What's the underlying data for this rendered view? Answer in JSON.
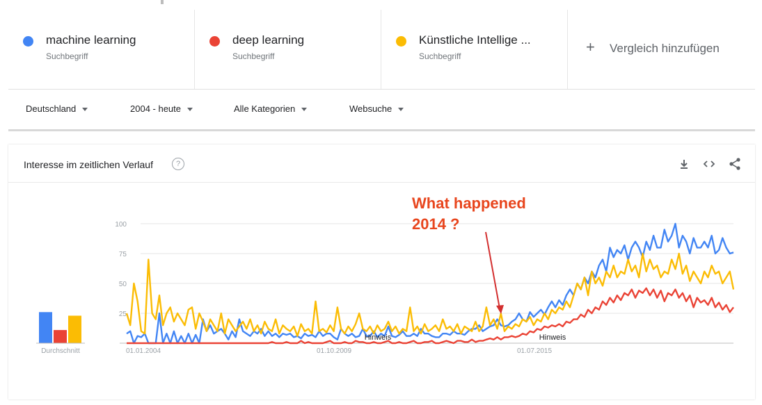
{
  "terms": [
    {
      "name": "machine learning",
      "sub": "Suchbegriff",
      "color": "#4285f4"
    },
    {
      "name": "deep learning",
      "sub": "Suchbegriff",
      "color": "#ea4335"
    },
    {
      "name": "Künstliche Intellige ...",
      "sub": "Suchbegriff",
      "color": "#fbbc04"
    }
  ],
  "add_compare": {
    "plus": "+",
    "label": "Vergleich hinzufügen"
  },
  "filters": {
    "region": "Deutschland",
    "time": "2004 - heute",
    "category": "Alle Kategorien",
    "search_type": "Websuche"
  },
  "card": {
    "title": "Interesse im zeitlichen Verlauf",
    "help": "?",
    "tools": [
      "download-icon",
      "embed-icon",
      "share-icon"
    ]
  },
  "annotation": "What happened\n2014 ?",
  "chart_data": {
    "type": "line",
    "ylim": [
      0,
      100
    ],
    "yticks": [
      "25",
      "50",
      "75",
      "100"
    ],
    "xticks": [
      "01.01.2004",
      "01.10.2009",
      "01.07.2015"
    ],
    "notes": [
      "Hinweis",
      "Hinweis"
    ],
    "average_label": "Durchschnitt",
    "averages": [
      26,
      11,
      23
    ],
    "series": [
      {
        "name": "machine learning",
        "color": "#4285f4",
        "values": [
          8,
          10,
          0,
          6,
          5,
          8,
          0,
          0,
          0,
          25,
          0,
          8,
          0,
          10,
          0,
          6,
          0,
          8,
          0,
          7,
          0,
          20,
          10,
          15,
          8,
          10,
          12,
          8,
          3,
          10,
          5,
          20,
          10,
          8,
          6,
          10,
          8,
          12,
          6,
          10,
          6,
          8,
          5,
          8,
          7,
          8,
          5,
          6,
          4,
          8,
          6,
          7,
          5,
          10,
          6,
          8,
          8,
          5,
          3,
          12,
          8,
          6,
          8,
          5,
          6,
          12,
          6,
          6,
          10,
          5,
          8,
          6,
          14,
          6,
          5,
          7,
          10,
          6,
          6,
          8,
          6,
          12,
          8,
          8,
          6,
          5,
          5,
          8,
          8,
          7,
          10,
          8,
          8,
          7,
          10,
          12,
          12,
          15,
          10,
          12,
          14,
          15,
          20,
          15,
          14,
          15,
          18,
          20,
          25,
          20,
          18,
          26,
          22,
          25,
          28,
          24,
          30,
          35,
          30,
          36,
          32,
          40,
          45,
          40,
          50,
          45,
          55,
          50,
          60,
          55,
          65,
          70,
          60,
          80,
          72,
          78,
          75,
          82,
          70,
          80,
          85,
          80,
          72,
          85,
          78,
          90,
          80,
          80,
          95,
          85,
          90,
          100,
          80,
          90,
          85,
          75,
          88,
          80,
          80,
          85,
          80,
          90,
          75,
          78,
          88,
          80,
          75,
          76
        ]
      },
      {
        "name": "deep learning",
        "color": "#ea4335",
        "values": [
          0,
          0,
          0,
          0,
          0,
          0,
          0,
          0,
          0,
          0,
          0,
          0,
          0,
          0,
          0,
          0,
          0,
          0,
          0,
          0,
          0,
          0,
          0,
          0,
          0,
          0,
          0,
          0,
          0,
          0,
          0,
          0,
          0,
          0,
          0,
          0,
          0,
          0,
          0,
          0,
          1,
          0,
          0,
          0,
          1,
          0,
          0,
          0,
          2,
          0,
          1,
          0,
          0,
          0,
          0,
          1,
          2,
          0,
          0,
          0,
          1,
          0,
          0,
          2,
          1,
          1,
          0,
          0,
          1,
          0,
          0,
          1,
          2,
          0,
          0,
          1,
          0,
          0,
          1,
          2,
          0,
          0,
          1,
          1,
          2,
          0,
          0,
          1,
          2,
          1,
          0,
          2,
          2,
          1,
          1,
          3,
          1,
          2,
          2,
          3,
          4,
          3,
          5,
          3,
          5,
          5,
          6,
          5,
          6,
          8,
          7,
          10,
          9,
          12,
          11,
          14,
          13,
          15,
          14,
          16,
          14,
          18,
          17,
          20,
          20,
          24,
          22,
          28,
          25,
          30,
          28,
          35,
          32,
          38,
          34,
          40,
          36,
          42,
          40,
          45,
          38,
          44,
          42,
          46,
          40,
          45,
          38,
          44,
          35,
          42,
          40,
          45,
          38,
          42,
          35,
          40,
          30,
          38,
          34,
          36,
          32,
          38,
          30,
          34,
          28,
          32,
          26,
          30
        ]
      },
      {
        "name": "Künstliche Intelligenz",
        "color": "#fbbc04",
        "values": [
          25,
          15,
          50,
          35,
          10,
          8,
          70,
          25,
          20,
          40,
          15,
          25,
          30,
          18,
          25,
          20,
          15,
          28,
          30,
          12,
          25,
          18,
          10,
          20,
          15,
          10,
          25,
          8,
          20,
          15,
          10,
          14,
          18,
          12,
          20,
          10,
          15,
          8,
          18,
          12,
          10,
          20,
          8,
          15,
          12,
          10,
          14,
          6,
          16,
          10,
          12,
          8,
          35,
          10,
          12,
          9,
          15,
          10,
          30,
          12,
          8,
          14,
          10,
          16,
          25,
          12,
          10,
          14,
          8,
          15,
          10,
          12,
          18,
          10,
          14,
          8,
          12,
          10,
          30,
          10,
          14,
          8,
          16,
          10,
          12,
          15,
          10,
          20,
          12,
          14,
          10,
          16,
          8,
          14,
          12,
          10,
          18,
          10,
          14,
          30,
          15,
          20,
          12,
          25,
          10,
          14,
          12,
          16,
          14,
          20,
          18,
          22,
          15,
          20,
          18,
          25,
          20,
          28,
          25,
          30,
          28,
          35,
          30,
          40,
          50,
          45,
          55,
          40,
          60,
          50,
          55,
          48,
          60,
          55,
          65,
          55,
          60,
          58,
          70,
          60,
          65,
          55,
          75,
          60,
          70,
          62,
          65,
          55,
          60,
          58,
          70,
          62,
          75,
          58,
          65,
          52,
          60,
          55,
          50,
          60,
          55,
          65,
          58,
          60,
          50,
          55,
          60,
          45
        ]
      }
    ]
  }
}
